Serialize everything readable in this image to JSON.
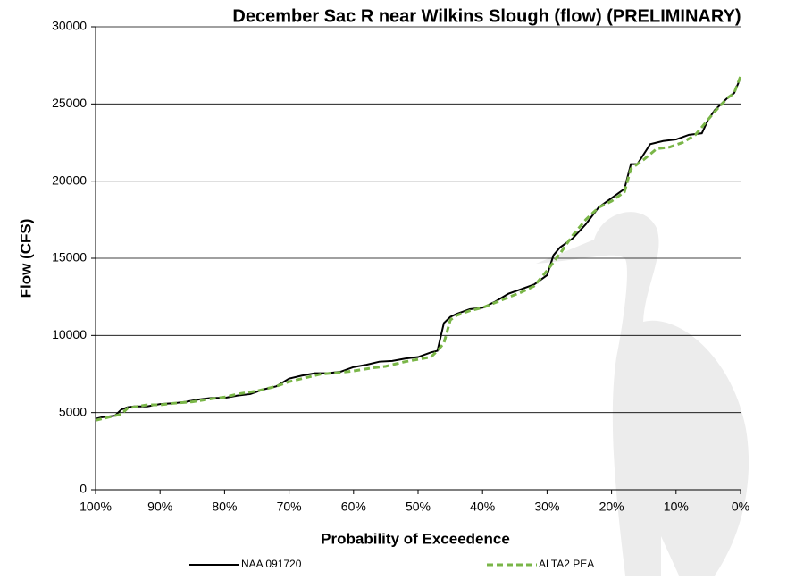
{
  "chart_data": {
    "type": "line",
    "title": "December Sac R near Wilkins Slough (flow) (PRELIMINARY)",
    "x_label": "Probability of Exceedence",
    "y_label": "Flow (CFS)",
    "xlim": [
      100,
      0
    ],
    "xticks": [
      {
        "value": 100,
        "label": "100%"
      },
      {
        "value": 90,
        "label": "90%"
      },
      {
        "value": 80,
        "label": "80%"
      },
      {
        "value": 70,
        "label": "70%"
      },
      {
        "value": 60,
        "label": "60%"
      },
      {
        "value": 50,
        "label": "50%"
      },
      {
        "value": 40,
        "label": "40%"
      },
      {
        "value": 30,
        "label": "30%"
      },
      {
        "value": 20,
        "label": "20%"
      },
      {
        "value": 10,
        "label": "10%"
      },
      {
        "value": 0,
        "label": "0%"
      }
    ],
    "ylim": [
      0,
      30000
    ],
    "yticks": [
      0,
      5000,
      10000,
      15000,
      20000,
      25000,
      30000
    ],
    "grid": true,
    "legend": "bottom",
    "series": [
      {
        "name": "NAA 091720",
        "color": "#000000",
        "dashed": false,
        "x": [
          100,
          99,
          97,
          96,
          95,
          94,
          92,
          90,
          88,
          86,
          84,
          82,
          80,
          78,
          76,
          74,
          72,
          70,
          68,
          66,
          64,
          62,
          60,
          58,
          56,
          54,
          52,
          50,
          48,
          47,
          46,
          45,
          44,
          42,
          40,
          38,
          36,
          34,
          32,
          30,
          29,
          28,
          26,
          24,
          22,
          20,
          18,
          17,
          16,
          14,
          12,
          10,
          8,
          6,
          5,
          4,
          2,
          1,
          0
        ],
        "values": [
          4600,
          4700,
          4800,
          5200,
          5350,
          5400,
          5400,
          5550,
          5600,
          5700,
          5850,
          5950,
          5950,
          6100,
          6200,
          6500,
          6700,
          7200,
          7400,
          7550,
          7550,
          7650,
          7950,
          8100,
          8300,
          8350,
          8500,
          8600,
          8900,
          9000,
          10800,
          11200,
          11400,
          11700,
          11800,
          12200,
          12700,
          13000,
          13300,
          13900,
          15200,
          15700,
          16300,
          17200,
          18300,
          18900,
          19500,
          21100,
          21100,
          22400,
          22600,
          22700,
          23000,
          23100,
          24000,
          24600,
          25400,
          25700,
          26700
        ]
      },
      {
        "name": "ALTA2 PEA",
        "color": "#7ab648",
        "dashed": true,
        "x": [
          100,
          98,
          96,
          95,
          92,
          90,
          88,
          85,
          82,
          80,
          78,
          75,
          72,
          70,
          67,
          65,
          62,
          60,
          57,
          55,
          52,
          50,
          48,
          47,
          46,
          45,
          44,
          42,
          40,
          37,
          34,
          32,
          30,
          28,
          26,
          24,
          22,
          20,
          18,
          17,
          15,
          13,
          11,
          9,
          7,
          5,
          4,
          2,
          1,
          0
        ],
        "values": [
          4500,
          4700,
          4900,
          5300,
          5500,
          5500,
          5600,
          5700,
          5900,
          6000,
          6200,
          6400,
          6700,
          7000,
          7300,
          7500,
          7600,
          7700,
          7900,
          8000,
          8300,
          8450,
          8600,
          9000,
          9500,
          11000,
          11300,
          11600,
          11800,
          12300,
          12800,
          13200,
          14200,
          15300,
          16500,
          17500,
          18300,
          18700,
          19300,
          20800,
          21400,
          22100,
          22200,
          22500,
          23000,
          24000,
          24500,
          25400,
          25700,
          26800
        ]
      }
    ]
  }
}
